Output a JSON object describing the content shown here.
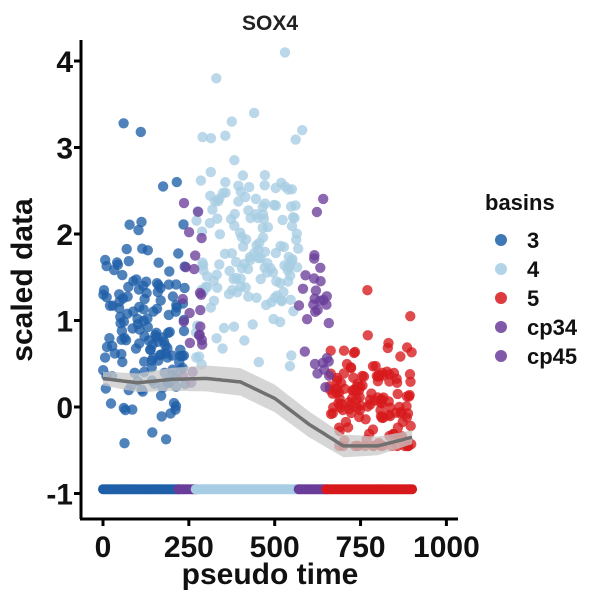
{
  "chart_data": {
    "type": "scatter",
    "title": "SOX4",
    "xlabel": "pseudo time",
    "ylabel": "scaled data",
    "xlim": [
      -50,
      1020
    ],
    "ylim": [
      -1.25,
      4.3
    ],
    "x_ticks": [
      "0",
      "250",
      "500",
      "750",
      "1000"
    ],
    "y_ticks": [
      "-1",
      "0",
      "1",
      "2",
      "3",
      "4"
    ],
    "legend_title": "basins",
    "legend_position": "right",
    "grid": false,
    "series": [
      {
        "name": "3",
        "color": "#1f5fa8",
        "x_range": [
          0,
          240
        ]
      },
      {
        "name": "4",
        "color": "#a6cde3",
        "x_range": [
          270,
          570
        ]
      },
      {
        "name": "5",
        "color": "#d7191c",
        "x_range": [
          660,
          900
        ]
      },
      {
        "name": "cp34",
        "color": "#6a3d9a",
        "x_range": [
          230,
          290
        ]
      },
      {
        "name": "cp45",
        "color": "#6a3d9a",
        "x_range": [
          570,
          660
        ]
      }
    ],
    "trend": {
      "color": "#707070",
      "band_color": "#c8c8c8",
      "x": [
        0,
        100,
        200,
        300,
        400,
        500,
        600,
        700,
        800,
        900
      ],
      "y": [
        0.33,
        0.28,
        0.32,
        0.33,
        0.29,
        0.1,
        -0.2,
        -0.45,
        -0.45,
        -0.35
      ]
    },
    "rug_y": -0.95,
    "rug": [
      {
        "from": 0,
        "to": 220,
        "color": "#1f5fa8"
      },
      {
        "from": 220,
        "to": 270,
        "color": "#6a3d9a"
      },
      {
        "from": 270,
        "to": 570,
        "color": "#a6cde3"
      },
      {
        "from": 570,
        "to": 650,
        "color": "#6a3d9a"
      },
      {
        "from": 650,
        "to": 900,
        "color": "#d7191c"
      }
    ],
    "outliers": [
      {
        "x": 60,
        "y": 3.28,
        "series": "3"
      },
      {
        "x": 110,
        "y": 3.18,
        "series": "3"
      },
      {
        "x": 175,
        "y": 2.55,
        "series": "3"
      },
      {
        "x": 215,
        "y": 2.6,
        "series": "3"
      },
      {
        "x": 330,
        "y": 3.8,
        "series": "4"
      },
      {
        "x": 530,
        "y": 4.1,
        "series": "4"
      },
      {
        "x": 290,
        "y": 3.12,
        "series": "4"
      },
      {
        "x": 440,
        "y": 3.4,
        "series": "4"
      },
      {
        "x": 580,
        "y": 3.2,
        "series": "4"
      },
      {
        "x": 770,
        "y": 1.35,
        "series": "5"
      },
      {
        "x": 895,
        "y": 1.05,
        "series": "5"
      }
    ]
  }
}
